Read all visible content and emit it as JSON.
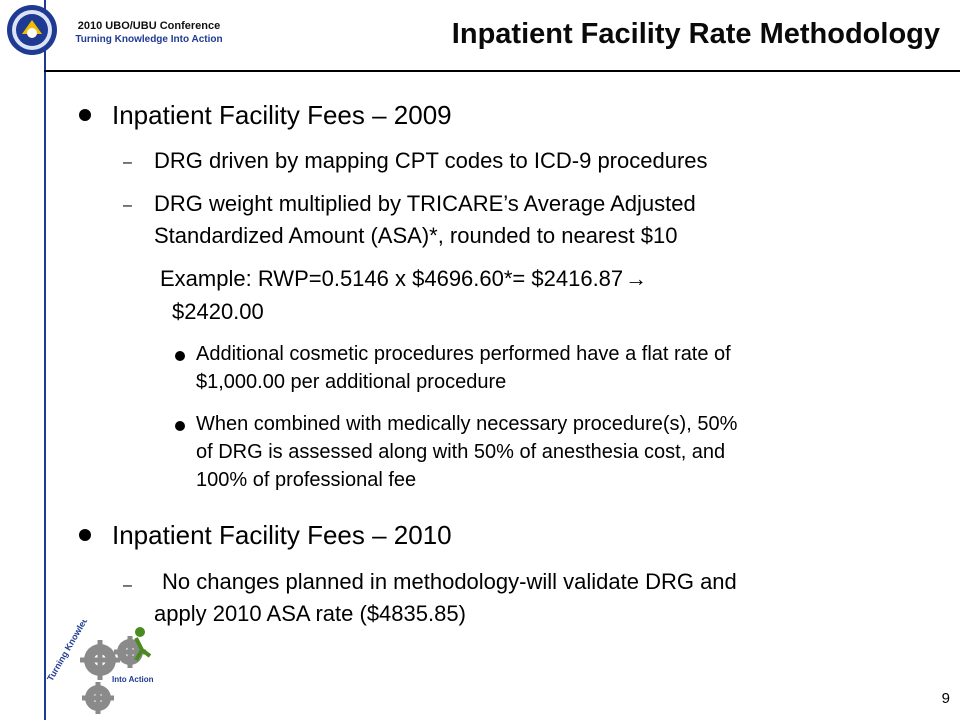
{
  "header": {
    "conference_line1": "2010 UBO/UBU Conference",
    "conference_line2": "Turning Knowledge Into Action",
    "title": "Inpatient Facility Rate Methodology"
  },
  "content": {
    "section1": {
      "heading": "Inpatient Facility Fees – 2009",
      "sub1": "DRG driven by mapping CPT codes to ICD-9 procedures",
      "sub2_line1": "DRG weight multiplied by TRICARE’s Average Adjusted",
      "sub2_line2": "Standardized Amount (ASA)*, rounded to nearest $10",
      "example_line1": "Example: RWP=0.5146 x $4696.60*= $2416.87",
      "example_arrow": "→",
      "example_line2": "$2420.00",
      "detail1_line1": "Additional cosmetic procedures performed have a flat rate of",
      "detail1_line2": "$1,000.00 per additional procedure",
      "detail2_line1": "When combined with medically necessary procedure(s), 50%",
      "detail2_line2": "of DRG is assessed along with 50% of anesthesia cost, and",
      "detail2_line3": "100% of professional fee"
    },
    "section2": {
      "heading": "Inpatient Facility Fees – 2010",
      "sub1_line1": "No changes planned in methodology-will validate DRG and",
      "sub1_line2": "apply 2010 ASA rate ($4835.85)"
    },
    "dash": "–"
  },
  "footer": {
    "page_number": "9",
    "logo_text_1": "Turning Knowledge",
    "logo_text_2": "Into Action"
  },
  "colors": {
    "accent": "#1f3a93",
    "text": "#000000",
    "gear": "#8a8a8a",
    "logo_green": "#4b8a1e"
  }
}
